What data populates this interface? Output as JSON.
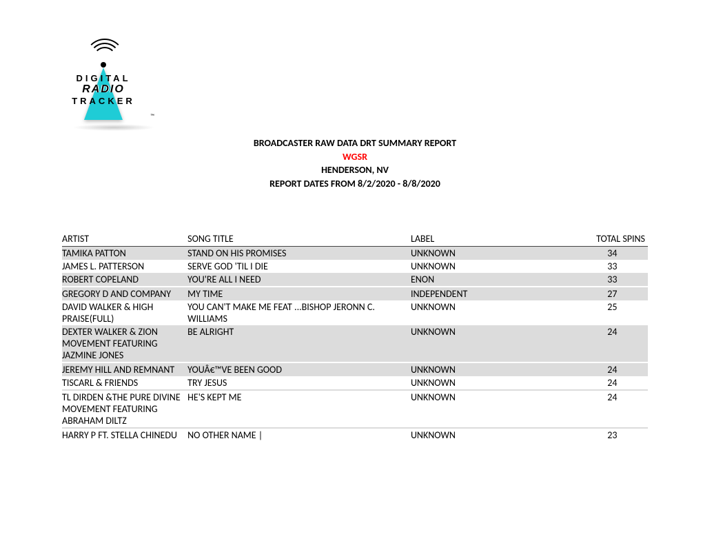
{
  "logo": {
    "line1": "DIGITAL",
    "line2": "RADIO",
    "line3": "TRACKER",
    "tm": "™",
    "accent_color": "#1fccd6"
  },
  "header": {
    "title": "BROADCASTER RAW DATA DRT SUMMARY REPORT",
    "station": "WGSR",
    "location": "HENDERSON, NV",
    "dates": "REPORT DATES FROM 8/2/2020 - 8/8/2020",
    "station_color": "#ff0000"
  },
  "columns": {
    "artist": "ARTIST",
    "song": "SONG TITLE",
    "label": "LABEL",
    "spins": "TOTAL SPINS"
  },
  "rows": [
    {
      "artist": "TAMIKA PATTON",
      "song": "STAND ON HIS PROMISES",
      "label": "UNKNOWN",
      "spins": "34",
      "shade": true
    },
    {
      "artist": "JAMES L. PATTERSON",
      "song": "SERVE GOD 'TIL I DIE",
      "label": "UNKNOWN",
      "spins": "33",
      "shade": false
    },
    {
      "artist": "ROBERT COPELAND",
      "song": "YOU'RE ALL I NEED",
      "label": "ENON",
      "spins": "33",
      "shade": true
    },
    {
      "artist": "",
      "song": "",
      "label": "",
      "spins": "",
      "shade": false
    },
    {
      "artist": "GREGORY D AND COMPANY",
      "song": "MY TIME",
      "label": "INDEPENDENT",
      "spins": "27",
      "shade": true
    },
    {
      "artist": "DAVID WALKER & HIGH PRAISE(FULL)",
      "song": "YOU CAN'T MAKE ME FEAT ...BISHOP JERONN C. WILLIAMS",
      "label": "UNKNOWN",
      "spins": "25",
      "shade": false
    },
    {
      "artist": "DEXTER WALKER & ZION MOVEMENT FEATURING JAZMINE JONES",
      "song": "BE ALRIGHT",
      "label": "UNKNOWN",
      "spins": "24",
      "shade": true
    },
    {
      "artist": "",
      "song": "",
      "label": "",
      "spins": "",
      "shade": false
    },
    {
      "artist": "JEREMY HILL AND REMNANT",
      "song": "YOUÂ€™VE BEEN GOOD",
      "label": "UNKNOWN",
      "spins": "24",
      "shade": true
    },
    {
      "artist": "TISCARL & FRIENDS",
      "song": "TRY JESUS",
      "label": "UNKNOWN",
      "spins": "24",
      "shade": false
    },
    {
      "artist": "",
      "song": "",
      "label": "",
      "spins": "",
      "shade": true
    },
    {
      "artist": "TL DIRDEN &THE PURE DIVINE MOVEMENT FEATURING ABRAHAM DILTZ",
      "song": "HE'S KEPT ME",
      "label": "UNKNOWN",
      "spins": "24",
      "shade": false
    },
    {
      "artist": "",
      "song": "",
      "label": "",
      "spins": "",
      "shade": true
    },
    {
      "artist": "HARRY P FT. STELLA CHINEDU",
      "song": "NO OTHER NAME |",
      "label": "UNKNOWN",
      "spins": "23",
      "shade": false
    }
  ]
}
